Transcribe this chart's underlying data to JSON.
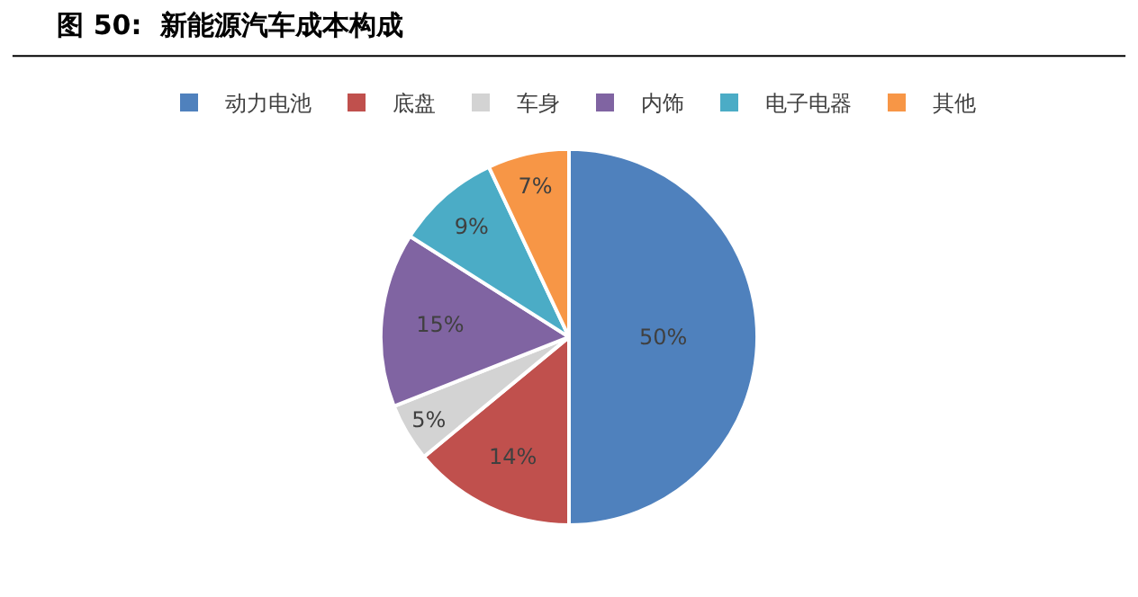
{
  "chart_data": {
    "type": "pie",
    "title": "图 50:  新能源汽车成本构成",
    "categories": [
      "动力电池",
      "底盘",
      "车身",
      "内饰",
      "电子电器",
      "其他"
    ],
    "values": [
      50,
      14,
      5,
      15,
      9,
      7
    ],
    "colors": [
      "#4f81bd",
      "#c0504d",
      "#d3d3d3",
      "#8064a2",
      "#4bacc6",
      "#f79646"
    ],
    "value_labels": [
      "50%",
      "14%",
      "5%",
      "15%",
      "9%",
      "7%"
    ],
    "legend": "top"
  }
}
